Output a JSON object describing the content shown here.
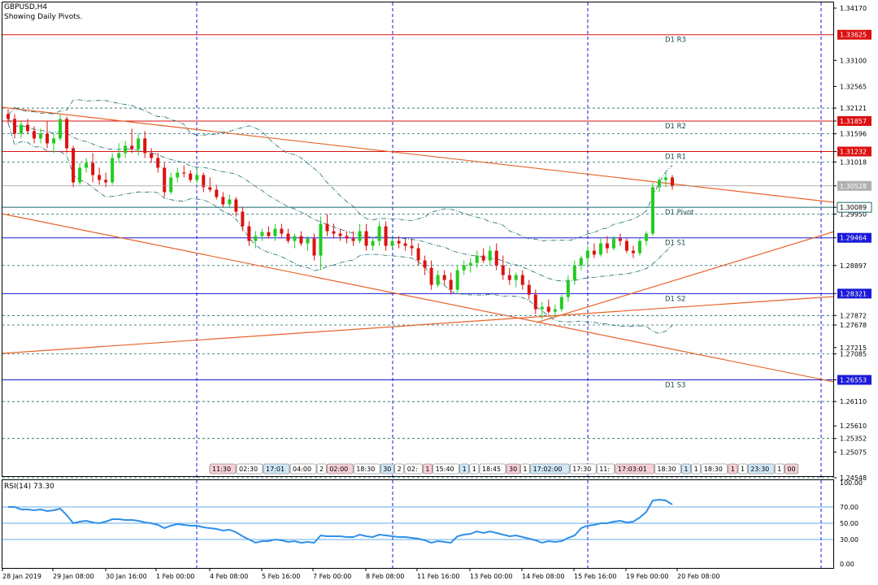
{
  "header": {
    "symbol": "GBPUSD,H4",
    "subtitle": "Showing Daily Pivots."
  },
  "rsi": {
    "label": "RSI(14) 73.30",
    "levels": [
      70,
      50,
      30
    ],
    "ticks": [
      "100.00",
      "70.00",
      "50.00",
      "30.00",
      "0.00"
    ]
  },
  "colors": {
    "bull": "#22cc22",
    "bear": "#dd1111",
    "res": "#dd1111",
    "sup": "#1a1ad8",
    "trend": "#e8642a",
    "grid": "#1a1ad8",
    "rsi": "#2f8fe8",
    "price_box": "#b0b0b0"
  },
  "price_axis": {
    "min": 1.24548,
    "max": 1.3417,
    "labels": [
      "1.34170",
      "1.33100",
      "1.32565",
      "1.32121",
      "1.31857",
      "1.31596",
      "1.31232",
      "1.31018",
      "1.30528",
      "1.30089",
      "1.29950",
      "1.29464",
      "1.28897",
      "1.28321",
      "1.27872",
      "1.27678",
      "1.27215",
      "1.27085",
      "1.26554",
      "1.26553",
      "1.26110",
      "1.25610",
      "1.25352",
      "1.25075",
      "1.24548"
    ]
  },
  "pivots": [
    {
      "name": "D1 R3",
      "value": 1.33625,
      "label": "1.33625",
      "kind": "res"
    },
    {
      "name": "D1 R2",
      "value": 1.31857,
      "label": "1.31857",
      "kind": "res"
    },
    {
      "name": "D1 R1",
      "value": 1.31232,
      "label": "1.31232",
      "kind": "res"
    },
    {
      "name": "D1 Pivot",
      "value": 1.30089,
      "label": "1.30089",
      "kind": "piv"
    },
    {
      "name": "D1 S1",
      "value": 1.29464,
      "label": "1.29464",
      "kind": "sup"
    },
    {
      "name": "D1 S2",
      "value": 1.28321,
      "label": "1.28321",
      "kind": "sup"
    },
    {
      "name": "D1 S3",
      "value": 1.26553,
      "label": "1.26553",
      "kind": "sup"
    }
  ],
  "hlines": [
    1.32121,
    1.31596,
    1.31018,
    1.2995,
    1.28897,
    1.27872,
    1.27678,
    1.27085,
    1.2611,
    1.25352,
    1.24548
  ],
  "current_price": {
    "value": 1.30528,
    "label": "1.30528"
  },
  "time_axis": [
    "28 Jan 2019",
    "29 Jan 08:00",
    "30 Jan 16:00",
    "1 Feb 00:00",
    "4 Feb 08:00",
    "5 Feb 16:00",
    "7 Feb 00:00",
    "8 Feb 08:00",
    "11 Feb 16:00",
    "13 Feb 00:00",
    "14 Feb 08:00",
    "15 Feb 16:00",
    "19 Feb 00:00",
    "20 Feb 08:00"
  ],
  "sessions": [
    "11:30",
    "02:30",
    "17:01",
    "04:00",
    "2",
    "02:00",
    "18:30",
    "30",
    "2",
    "02:",
    "1",
    "15:40",
    "1",
    "1",
    "18:45",
    "30",
    "1",
    "17:02:00",
    "17:30",
    "11:",
    "17:03:01",
    "18:30",
    "1",
    "1",
    "18:30",
    "1",
    "1",
    "23:30",
    "1",
    "18:30",
    "00",
    "2",
    "00:30"
  ],
  "chart_data": {
    "type": "candlestick",
    "symbol": "GBPUSD",
    "timeframe": "H4",
    "ohlc": [
      [
        1.32,
        1.321,
        1.318,
        1.319
      ],
      [
        1.319,
        1.32,
        1.315,
        1.316
      ],
      [
        1.316,
        1.3185,
        1.315,
        1.3178
      ],
      [
        1.3178,
        1.319,
        1.316,
        1.3165
      ],
      [
        1.3165,
        1.3175,
        1.314,
        1.315
      ],
      [
        1.315,
        1.317,
        1.314,
        1.316
      ],
      [
        1.316,
        1.3185,
        1.313,
        1.314
      ],
      [
        1.314,
        1.316,
        1.312,
        1.315
      ],
      [
        1.315,
        1.32,
        1.3145,
        1.319
      ],
      [
        1.319,
        1.3195,
        1.312,
        1.313
      ],
      [
        1.313,
        1.3135,
        1.305,
        1.306
      ],
      [
        1.306,
        1.31,
        1.3055,
        1.309
      ],
      [
        1.309,
        1.311,
        1.308,
        1.31
      ],
      [
        1.31,
        1.312,
        1.306,
        1.3075
      ],
      [
        1.3075,
        1.309,
        1.3055,
        1.3065
      ],
      [
        1.3065,
        1.308,
        1.305,
        1.306
      ],
      [
        1.306,
        1.312,
        1.3055,
        1.311
      ],
      [
        1.311,
        1.314,
        1.31,
        1.312
      ],
      [
        1.312,
        1.3145,
        1.311,
        1.3135
      ],
      [
        1.3135,
        1.317,
        1.312,
        1.3128
      ],
      [
        1.3128,
        1.316,
        1.3115,
        1.315
      ],
      [
        1.315,
        1.3165,
        1.311,
        1.312
      ],
      [
        1.312,
        1.313,
        1.31,
        1.311
      ],
      [
        1.311,
        1.312,
        1.308,
        1.309
      ],
      [
        1.309,
        1.31,
        1.303,
        1.304
      ],
      [
        1.304,
        1.308,
        1.3035,
        1.307
      ],
      [
        1.307,
        1.309,
        1.306,
        1.308
      ],
      [
        1.308,
        1.3095,
        1.307,
        1.3078
      ],
      [
        1.3078,
        1.3085,
        1.306,
        1.3065
      ],
      [
        1.3065,
        1.309,
        1.3058,
        1.3075
      ],
      [
        1.3075,
        1.308,
        1.304,
        1.305
      ],
      [
        1.305,
        1.307,
        1.304,
        1.3045
      ],
      [
        1.3045,
        1.3055,
        1.3025,
        1.303
      ],
      [
        1.303,
        1.304,
        1.301,
        1.3015
      ],
      [
        1.3015,
        1.3035,
        1.301,
        1.3025
      ],
      [
        1.3025,
        1.303,
        1.299,
        1.3
      ],
      [
        1.3,
        1.301,
        1.296,
        1.297
      ],
      [
        1.297,
        1.298,
        1.293,
        1.294
      ],
      [
        1.294,
        1.296,
        1.2925,
        1.295
      ],
      [
        1.295,
        1.2965,
        1.294,
        1.2958
      ],
      [
        1.2958,
        1.297,
        1.2945,
        1.295
      ],
      [
        1.295,
        1.2975,
        1.294,
        1.2965
      ],
      [
        1.2965,
        1.2975,
        1.2945,
        1.2955
      ],
      [
        1.2955,
        1.2965,
        1.2935,
        1.294
      ],
      [
        1.294,
        1.2955,
        1.2925,
        1.295
      ],
      [
        1.295,
        1.296,
        1.293,
        1.2935
      ],
      [
        1.2935,
        1.295,
        1.292,
        1.2945
      ],
      [
        1.2945,
        1.2955,
        1.29,
        1.291
      ],
      [
        1.291,
        1.299,
        1.288,
        1.2975
      ],
      [
        1.2975,
        1.2995,
        1.295,
        1.296
      ],
      [
        1.296,
        1.2975,
        1.2945,
        1.2955
      ],
      [
        1.2955,
        1.2965,
        1.294,
        1.295
      ],
      [
        1.295,
        1.296,
        1.2935,
        1.2945
      ],
      [
        1.2945,
        1.296,
        1.293,
        1.294
      ],
      [
        1.294,
        1.2975,
        1.2935,
        1.296
      ],
      [
        1.296,
        1.2975,
        1.292,
        1.293
      ],
      [
        1.293,
        1.2945,
        1.292,
        1.294
      ],
      [
        1.294,
        1.298,
        1.293,
        1.297
      ],
      [
        1.297,
        1.298,
        1.292,
        1.293
      ],
      [
        1.293,
        1.2945,
        1.2925,
        1.294
      ],
      [
        1.294,
        1.295,
        1.2925,
        1.2935
      ],
      [
        1.2935,
        1.2945,
        1.292,
        1.293
      ],
      [
        1.293,
        1.2945,
        1.291,
        1.2925
      ],
      [
        1.2925,
        1.2935,
        1.289,
        1.29
      ],
      [
        1.29,
        1.291,
        1.287,
        1.2885
      ],
      [
        1.2885,
        1.29,
        1.284,
        1.285
      ],
      [
        1.285,
        1.288,
        1.2845,
        1.287
      ],
      [
        1.287,
        1.288,
        1.285,
        1.286
      ],
      [
        1.286,
        1.2875,
        1.283,
        1.284
      ],
      [
        1.284,
        1.289,
        1.2835,
        1.288
      ],
      [
        1.288,
        1.29,
        1.287,
        1.289
      ],
      [
        1.289,
        1.2905,
        1.2875,
        1.2895
      ],
      [
        1.2895,
        1.292,
        1.2885,
        1.291
      ],
      [
        1.291,
        1.2925,
        1.2895,
        1.29
      ],
      [
        1.29,
        1.293,
        1.289,
        1.292
      ],
      [
        1.292,
        1.2935,
        1.288,
        1.289
      ],
      [
        1.289,
        1.291,
        1.286,
        1.287
      ],
      [
        1.287,
        1.2885,
        1.285,
        1.286
      ],
      [
        1.286,
        1.2875,
        1.2845,
        1.287
      ],
      [
        1.287,
        1.288,
        1.284,
        1.285
      ],
      [
        1.285,
        1.286,
        1.282,
        1.283
      ],
      [
        1.283,
        1.284,
        1.279,
        1.28
      ],
      [
        1.28,
        1.2815,
        1.278,
        1.2805
      ],
      [
        1.2805,
        1.282,
        1.279,
        1.2795
      ],
      [
        1.2795,
        1.281,
        1.2785,
        1.28
      ],
      [
        1.28,
        1.283,
        1.2795,
        1.2825
      ],
      [
        1.2825,
        1.287,
        1.2815,
        1.286
      ],
      [
        1.286,
        1.29,
        1.285,
        1.289
      ],
      [
        1.289,
        1.291,
        1.288,
        1.2905
      ],
      [
        1.2905,
        1.293,
        1.289,
        1.292
      ],
      [
        1.292,
        1.2935,
        1.2905,
        1.2912
      ],
      [
        1.2912,
        1.2945,
        1.2908,
        1.2935
      ],
      [
        1.2935,
        1.295,
        1.2915,
        1.2925
      ],
      [
        1.2925,
        1.295,
        1.292,
        1.2945
      ],
      [
        1.2945,
        1.2955,
        1.293,
        1.294
      ],
      [
        1.294,
        1.2945,
        1.2915,
        1.292
      ],
      [
        1.292,
        1.293,
        1.2905,
        1.2915
      ],
      [
        1.2915,
        1.2945,
        1.291,
        1.294
      ],
      [
        1.294,
        1.296,
        1.293,
        1.2955
      ],
      [
        1.2955,
        1.306,
        1.295,
        1.305
      ],
      [
        1.305,
        1.307,
        1.304,
        1.3065
      ],
      [
        1.3065,
        1.308,
        1.305,
        1.307
      ],
      [
        1.307,
        1.3075,
        1.3045,
        1.3052
      ]
    ],
    "x_range": [
      "28 Jan 2019",
      "20 Feb 08:00"
    ],
    "ylim": [
      1.24548,
      1.3417
    ],
    "rsi_values": [
      70,
      70,
      67,
      67,
      66,
      67,
      65,
      66,
      68,
      60,
      50,
      52,
      53,
      51,
      50,
      52,
      55,
      55,
      54,
      54,
      53,
      51,
      50,
      48,
      44,
      47,
      49,
      48,
      47,
      47,
      45,
      44,
      43,
      41,
      42,
      39,
      34,
      30,
      26,
      28,
      28,
      30,
      29,
      27,
      28,
      26,
      27,
      26,
      35,
      34,
      34,
      34,
      33,
      33,
      36,
      34,
      33,
      36,
      35,
      34,
      33,
      33,
      32,
      31,
      29,
      26,
      28,
      27,
      26,
      34,
      36,
      37,
      40,
      38,
      40,
      38,
      36,
      34,
      35,
      33,
      31,
      29,
      26,
      28,
      27,
      28,
      32,
      35,
      44,
      47,
      48,
      50,
      50,
      52,
      53,
      51,
      52,
      57,
      64,
      78,
      79,
      78,
      73
    ],
    "rsi_range": [
      0,
      100
    ],
    "grid": true
  }
}
